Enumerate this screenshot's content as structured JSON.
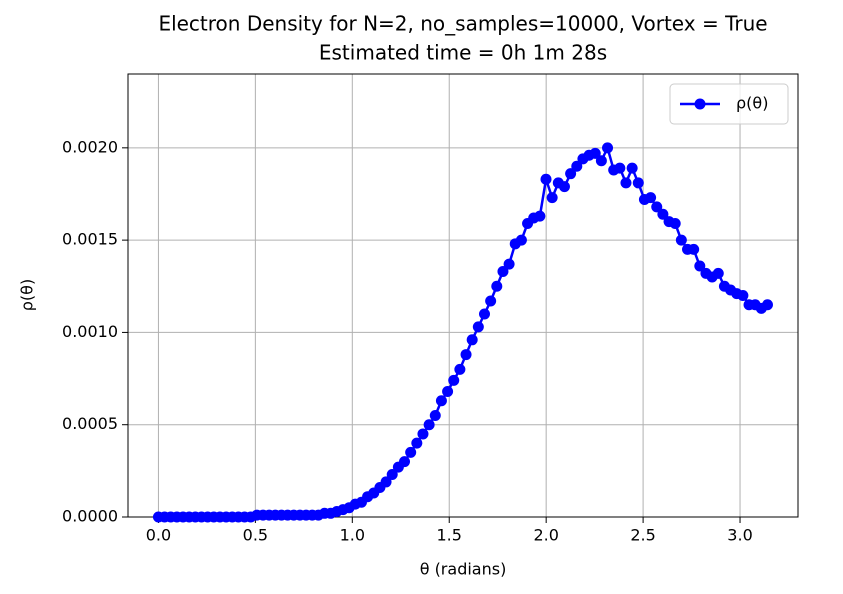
{
  "chart_data": {
    "type": "line",
    "title": "Electron Density for N=2, no_samples=10000, Vortex = True",
    "subtitle": "Estimated time = 0h 1m 28s",
    "x_label": "θ (radians)",
    "y_label": "ρ(θ)",
    "x": [
      0,
      0.0317,
      0.0635,
      0.0952,
      0.1269,
      0.1587,
      0.1904,
      0.2221,
      0.2539,
      0.2856,
      0.3173,
      0.3491,
      0.3808,
      0.4125,
      0.4443,
      0.476,
      0.5077,
      0.5395,
      0.5712,
      0.6029,
      0.6347,
      0.6664,
      0.6981,
      0.7299,
      0.7616,
      0.7933,
      0.8251,
      0.8568,
      0.8885,
      0.9203,
      0.952,
      0.9837,
      1.0155,
      1.0472,
      1.0789,
      1.1107,
      1.1424,
      1.1741,
      1.2059,
      1.2376,
      1.2693,
      1.3011,
      1.3328,
      1.3645,
      1.3963,
      1.428,
      1.4597,
      1.4915,
      1.5232,
      1.5549,
      1.5867,
      1.6184,
      1.6501,
      1.6819,
      1.7136,
      1.7453,
      1.7771,
      1.8088,
      1.8405,
      1.8723,
      1.904,
      1.9357,
      1.9675,
      1.9992,
      2.0309,
      2.0627,
      2.0944,
      2.1261,
      2.1579,
      2.1896,
      2.2213,
      2.2531,
      2.2848,
      2.3165,
      2.3483,
      2.38,
      2.4117,
      2.4435,
      2.4752,
      2.5069,
      2.5387,
      2.5704,
      2.6021,
      2.6339,
      2.6656,
      2.6973,
      2.7291,
      2.7608,
      2.7925,
      2.8243,
      2.856,
      2.8877,
      2.9195,
      2.9512,
      2.9829,
      3.0147,
      3.0464,
      3.0781,
      3.1099,
      3.1416
    ],
    "series": [
      {
        "name": "ρ(θ)",
        "color": "#0000ff",
        "values": [
          0,
          0,
          0,
          0,
          0,
          0,
          0,
          0,
          0,
          0,
          0,
          0,
          0,
          0,
          0,
          0,
          1e-05,
          1e-05,
          1e-05,
          1e-05,
          1e-05,
          1e-05,
          1e-05,
          1e-05,
          1e-05,
          1e-05,
          1e-05,
          2e-05,
          2e-05,
          3e-05,
          4e-05,
          5e-05,
          7e-05,
          8e-05,
          0.00011,
          0.00013,
          0.00016,
          0.00019,
          0.00023,
          0.00027,
          0.0003,
          0.00035,
          0.0004,
          0.00045,
          0.0005,
          0.00055,
          0.00063,
          0.00068,
          0.00074,
          0.0008,
          0.00088,
          0.00096,
          0.00103,
          0.0011,
          0.00117,
          0.00125,
          0.00133,
          0.00137,
          0.00148,
          0.0015,
          0.00159,
          0.00162,
          0.00163,
          0.00183,
          0.00173,
          0.00181,
          0.00179,
          0.00186,
          0.0019,
          0.00194,
          0.00196,
          0.00197,
          0.00193,
          0.002,
          0.00188,
          0.00189,
          0.00181,
          0.00189,
          0.00181,
          0.00172,
          0.00173,
          0.00168,
          0.00164,
          0.0016,
          0.00159,
          0.0015,
          0.00145,
          0.00145,
          0.00136,
          0.00132,
          0.0013,
          0.00132,
          0.00125,
          0.00123,
          0.00121,
          0.0012,
          0.00115,
          0.00115,
          0.00113,
          0.00115
        ]
      }
    ],
    "xlim": [
      -0.157,
      3.299
    ],
    "ylim": [
      0,
      0.0024
    ],
    "xticks": [
      {
        "value": 0,
        "label": "0.0"
      },
      0.5,
      {
        "value": 1,
        "label": "1.0"
      },
      1.5,
      {
        "value": 2,
        "label": "2.0"
      },
      2.5,
      {
        "value": 3,
        "label": "3.0"
      }
    ],
    "yticks": [
      {
        "value": 0,
        "label": "0.0000"
      },
      {
        "value": 0.0005,
        "label": "0.0005"
      },
      {
        "value": 0.001,
        "label": "0.0010"
      },
      {
        "value": 0.0015,
        "label": "0.0015"
      },
      {
        "value": 0.002,
        "label": "0.0020"
      }
    ],
    "grid": true,
    "legend": "upper right"
  }
}
